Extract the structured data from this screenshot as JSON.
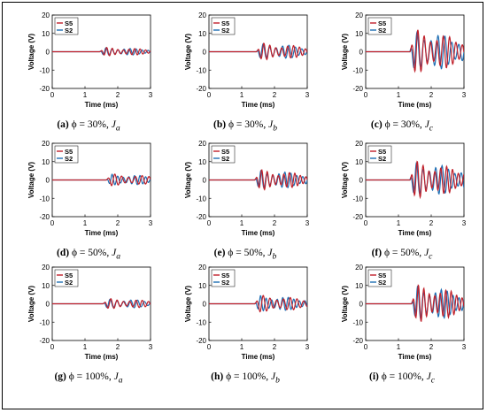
{
  "colors": {
    "S5": "#c0202a",
    "S2": "#1f6fb4"
  },
  "chart_data": [
    {
      "type": "line",
      "caption_id": "(a)",
      "caption_phi": "ϕ = 30%,",
      "caption_J": "J",
      "caption_sub": "a",
      "xlabel": "Time (ms)",
      "ylabel": "Voltage (V)",
      "xlim": [
        0,
        3
      ],
      "ylim": [
        -20,
        20
      ],
      "xticks": [
        "0",
        "1",
        "2",
        "3"
      ],
      "yticks": [
        "20",
        "10",
        "0",
        "-10",
        "-20"
      ],
      "series": [
        {
          "name": "S5",
          "color": "#c0202a"
        },
        {
          "name": "S2",
          "color": "#1f6fb4"
        }
      ],
      "onset": 1.45,
      "amp": 2.5
    },
    {
      "type": "line",
      "caption_id": "(b)",
      "caption_phi": "ϕ = 30%,",
      "caption_J": "J",
      "caption_sub": "b",
      "xlabel": "Time (ms)",
      "ylabel": "Voltage (V)",
      "xlim": [
        0,
        3
      ],
      "ylim": [
        -20,
        20
      ],
      "xticks": [
        "0",
        "1",
        "2",
        "3"
      ],
      "yticks": [
        "20",
        "10",
        "0",
        "-10",
        "-20"
      ],
      "series": [
        {
          "name": "S5",
          "color": "#c0202a"
        },
        {
          "name": "S2",
          "color": "#1f6fb4"
        }
      ],
      "onset": 1.45,
      "amp": 5
    },
    {
      "type": "line",
      "caption_id": "(c)",
      "caption_phi": "ϕ = 30%,",
      "caption_J": "J",
      "caption_sub": "c",
      "xlabel": "Time (ms)",
      "ylabel": "Voltage (V)",
      "xlim": [
        0,
        3
      ],
      "ylim": [
        -20,
        20
      ],
      "xticks": [
        "0",
        "1",
        "2",
        "3"
      ],
      "yticks": [
        "20",
        "10",
        "0",
        "-10",
        "-20"
      ],
      "series": [
        {
          "name": "S5",
          "color": "#c0202a"
        },
        {
          "name": "S2",
          "color": "#1f6fb4"
        }
      ],
      "onset": 1.35,
      "amp": 13
    },
    {
      "type": "line",
      "caption_id": "(d)",
      "caption_phi": "ϕ = 50%,",
      "caption_J": "J",
      "caption_sub": "a",
      "xlabel": "Time (ms)",
      "ylabel": "Voltage (V)",
      "xlim": [
        0,
        3
      ],
      "ylim": [
        -20,
        20
      ],
      "xticks": [
        "0",
        "1",
        "2",
        "3"
      ],
      "yticks": [
        "20",
        "10",
        "0",
        "-10",
        "-20"
      ],
      "series": [
        {
          "name": "S5",
          "color": "#c0202a"
        },
        {
          "name": "S2",
          "color": "#1f6fb4"
        }
      ],
      "onset": 1.65,
      "amp": 3.5
    },
    {
      "type": "line",
      "caption_id": "(e)",
      "caption_phi": "ϕ = 50%,",
      "caption_J": "J",
      "caption_sub": "b",
      "xlabel": "Time (ms)",
      "ylabel": "Voltage (V)",
      "xlim": [
        0,
        3
      ],
      "ylim": [
        -20,
        20
      ],
      "xticks": [
        "0",
        "1",
        "2",
        "3"
      ],
      "yticks": [
        "20",
        "10",
        "0",
        "-10",
        "-20"
      ],
      "series": [
        {
          "name": "S5",
          "color": "#c0202a"
        },
        {
          "name": "S2",
          "color": "#1f6fb4"
        }
      ],
      "onset": 1.4,
      "amp": 6
    },
    {
      "type": "line",
      "caption_id": "(f)",
      "caption_phi": "ϕ = 50%,",
      "caption_J": "J",
      "caption_sub": "c",
      "xlabel": "Time (ms)",
      "ylabel": "Voltage (V)",
      "xlim": [
        0,
        3
      ],
      "ylim": [
        -20,
        20
      ],
      "xticks": [
        "0",
        "1",
        "2",
        "3"
      ],
      "yticks": [
        "20",
        "10",
        "0",
        "-10",
        "-20"
      ],
      "series": [
        {
          "name": "S5",
          "color": "#c0202a"
        },
        {
          "name": "S2",
          "color": "#1f6fb4"
        }
      ],
      "onset": 1.35,
      "amp": 11
    },
    {
      "type": "line",
      "caption_id": "(g)",
      "caption_phi": "ϕ = 100%,",
      "caption_J": "J",
      "caption_sub": "a",
      "xlabel": "Time (ms)",
      "ylabel": "Voltage (V)",
      "xlim": [
        0,
        3
      ],
      "ylim": [
        -20,
        20
      ],
      "xticks": [
        "0",
        "1",
        "2",
        "3"
      ],
      "yticks": [
        "20",
        "10",
        "0",
        "-10",
        "-20"
      ],
      "series": [
        {
          "name": "S5",
          "color": "#c0202a"
        },
        {
          "name": "S2",
          "color": "#1f6fb4"
        }
      ],
      "onset": 1.55,
      "amp": 3
    },
    {
      "type": "line",
      "caption_id": "(h)",
      "caption_phi": "ϕ = 100%,",
      "caption_J": "J",
      "caption_sub": "b",
      "xlabel": "Time (ms)",
      "ylabel": "Voltage (V)",
      "xlim": [
        0,
        3
      ],
      "ylim": [
        -20,
        20
      ],
      "xticks": [
        "0",
        "1",
        "2",
        "3"
      ],
      "yticks": [
        "20",
        "10",
        "0",
        "-10",
        "-20"
      ],
      "series": [
        {
          "name": "S5",
          "color": "#c0202a"
        },
        {
          "name": "S2",
          "color": "#1f6fb4"
        }
      ],
      "onset": 1.4,
      "amp": 5
    },
    {
      "type": "line",
      "caption_id": "(i)",
      "caption_phi": "ϕ = 100%,",
      "caption_J": "J",
      "caption_sub": "c",
      "xlabel": "Time (ms)",
      "ylabel": "Voltage (V)",
      "xlim": [
        0,
        3
      ],
      "ylim": [
        -20,
        20
      ],
      "xticks": [
        "0",
        "1",
        "2",
        "3"
      ],
      "yticks": [
        "20",
        "10",
        "0",
        "-10",
        "-20"
      ],
      "series": [
        {
          "name": "S5",
          "color": "#c0202a"
        },
        {
          "name": "S2",
          "color": "#1f6fb4"
        }
      ],
      "onset": 1.4,
      "amp": 11
    }
  ]
}
